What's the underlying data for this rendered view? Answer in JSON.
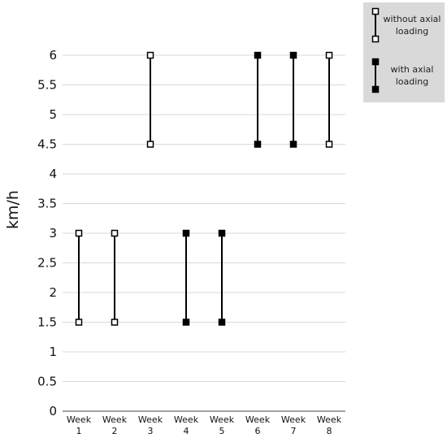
{
  "chart_data": {
    "type": "range",
    "ylabel": "km/h",
    "xlabel": "",
    "ylim": [
      0,
      6
    ],
    "yticks": [
      "0",
      "0.5",
      "1",
      "1.5",
      "2",
      "2.5",
      "3",
      "3.5",
      "4",
      "4.5",
      "5",
      "5.5",
      "6"
    ],
    "grid": true,
    "legend_position": "top-right",
    "categories": [
      [
        "Week",
        "1"
      ],
      [
        "Week",
        "2"
      ],
      [
        "Week",
        "3"
      ],
      [
        "Week",
        "4"
      ],
      [
        "Week",
        "5"
      ],
      [
        "Week",
        "6"
      ],
      [
        "Week",
        "7"
      ],
      [
        "Week",
        "8"
      ]
    ],
    "series": [
      {
        "name": "without axial loading",
        "name_lines": [
          "without axial",
          "loading"
        ],
        "marker": "open-square",
        "ranges": [
          {
            "category": 1,
            "low": 1.5,
            "high": 3
          },
          {
            "category": 2,
            "low": 1.5,
            "high": 3
          },
          {
            "category": 3,
            "low": 4.5,
            "high": 6
          },
          {
            "category": 8,
            "low": 4.5,
            "high": 6
          }
        ]
      },
      {
        "name": "with axial loading",
        "name_lines": [
          "with axial",
          "loading"
        ],
        "marker": "filled-square",
        "ranges": [
          {
            "category": 4,
            "low": 1.5,
            "high": 3
          },
          {
            "category": 5,
            "low": 1.5,
            "high": 3
          },
          {
            "category": 6,
            "low": 4.5,
            "high": 6
          },
          {
            "category": 7,
            "low": 4.5,
            "high": 6
          }
        ]
      }
    ],
    "colors": {
      "line": "#000000",
      "grid": "#d9d9d9",
      "legend_bg": "#d9d9d9"
    }
  }
}
